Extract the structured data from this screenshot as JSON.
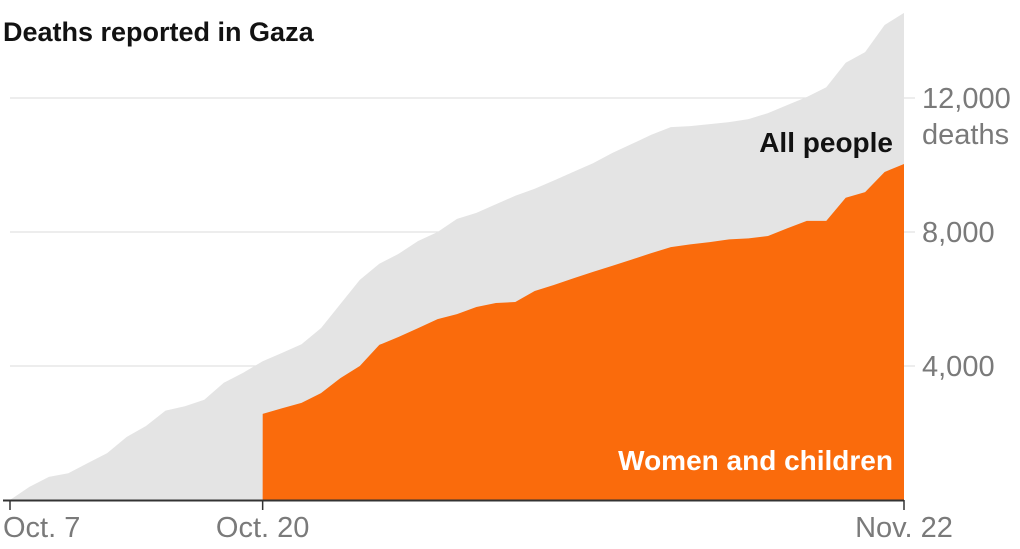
{
  "chart_data": {
    "type": "area",
    "title": "Deaths reported in Gaza",
    "xlabel": "",
    "ylabel": "deaths",
    "x_start_label": "Oct. 7",
    "x_tick_labels": [
      {
        "day": 0,
        "label": "Oct. 7"
      },
      {
        "day": 13,
        "label": "Oct. 20"
      },
      {
        "day": 46,
        "label": "Nov. 22"
      }
    ],
    "y_ticks": [
      {
        "value": 4000,
        "label": "4,000"
      },
      {
        "value": 8000,
        "label": "8,000"
      },
      {
        "value": 12000,
        "label": "12,000"
      }
    ],
    "y_unit_label": "deaths",
    "ylim": [
      0,
      14600
    ],
    "x_units": "days since Oct. 7",
    "grid": true,
    "series": [
      {
        "name": "All people",
        "color": "#e4e4e4",
        "label_color": "#121212",
        "start_day": 0,
        "values": [
          0,
          390,
          690,
          800,
          1100,
          1400,
          1880,
          2210,
          2670,
          2800,
          2990,
          3500,
          3800,
          4140,
          4390,
          4650,
          5130,
          5850,
          6570,
          7050,
          7350,
          7730,
          8000,
          8390,
          8570,
          8830,
          9080,
          9290,
          9540,
          9800,
          10050,
          10360,
          10630,
          10900,
          11130,
          11160,
          11220,
          11280,
          11370,
          11550,
          11790,
          12030,
          12320,
          13050,
          13370,
          14180,
          14540
        ]
      },
      {
        "name": "Women and children",
        "color": "#fa6b0c",
        "label_color": "#ffffff",
        "start_day": 13,
        "values": [
          2570,
          2740,
          2900,
          3190,
          3640,
          4000,
          4630,
          4870,
          5130,
          5400,
          5550,
          5760,
          5880,
          5910,
          6240,
          6420,
          6620,
          6810,
          6990,
          7180,
          7370,
          7550,
          7630,
          7700,
          7780,
          7810,
          7880,
          8110,
          8330,
          8330,
          9020,
          9190,
          9790,
          10030
        ]
      }
    ]
  }
}
